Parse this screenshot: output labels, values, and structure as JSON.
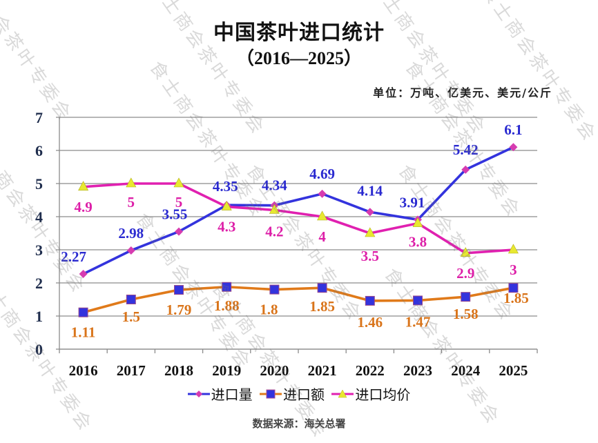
{
  "header": {
    "title": "中国茶叶进口统计",
    "subtitle": "（2016—2025）",
    "unit": "单位：万吨、亿美元、美元/公斤"
  },
  "footer": {
    "source": "数据来源：海关总署"
  },
  "watermark": "食士商会茶叶专委会",
  "chart_data": {
    "type": "line",
    "title": "中国茶叶进口统计（2016—2025）",
    "xlabel": "",
    "ylabel": "单位：万吨、亿美元、美元/公斤",
    "categories": [
      "2016",
      "2017",
      "2018",
      "2019",
      "2020",
      "2021",
      "2022",
      "2023",
      "2024",
      "2025"
    ],
    "ylim": [
      0,
      7
    ],
    "yticks": [
      "0",
      "1",
      "2",
      "3",
      "4",
      "5",
      "6",
      "7"
    ],
    "grid": true,
    "legend_position": "bottom",
    "series": [
      {
        "name": "进口量",
        "values": [
          2.27,
          2.98,
          3.55,
          4.35,
          4.34,
          4.69,
          4.14,
          3.91,
          5.42,
          6.1
        ],
        "labels": [
          "2.27",
          "2.98",
          "3.55",
          "4.35",
          "4.34",
          "4.69",
          "4.14",
          "3.91",
          "5.42",
          "6.1"
        ],
        "line_color": "#3333dd",
        "marker": "diamond",
        "marker_color": "#d63cb0",
        "label_color": "#2a2ad0",
        "label_position": "above"
      },
      {
        "name": "进口额",
        "values": [
          1.11,
          1.5,
          1.79,
          1.88,
          1.8,
          1.85,
          1.46,
          1.47,
          1.58,
          1.85
        ],
        "labels": [
          "1.11",
          "1.5",
          "1.79",
          "1.88",
          "1.8",
          "1.85",
          "1.46",
          "1.47",
          "1.58",
          "1.85"
        ],
        "line_color": "#e07a1a",
        "marker": "square",
        "marker_color": "#3333dd",
        "label_color": "#d9741a",
        "label_position": "below"
      },
      {
        "name": "进口均价",
        "values": [
          4.9,
          5,
          5,
          4.3,
          4.2,
          4,
          3.5,
          3.8,
          2.9,
          3
        ],
        "labels": [
          "4.9",
          "5",
          "5",
          "4.3",
          "4.2",
          "4",
          "3.5",
          "3.8",
          "2.9",
          "3"
        ],
        "line_color": "#e020b0",
        "marker": "triangle",
        "marker_color": "#e8e830",
        "label_color": "#dd1fa8",
        "label_position": "below"
      }
    ]
  }
}
